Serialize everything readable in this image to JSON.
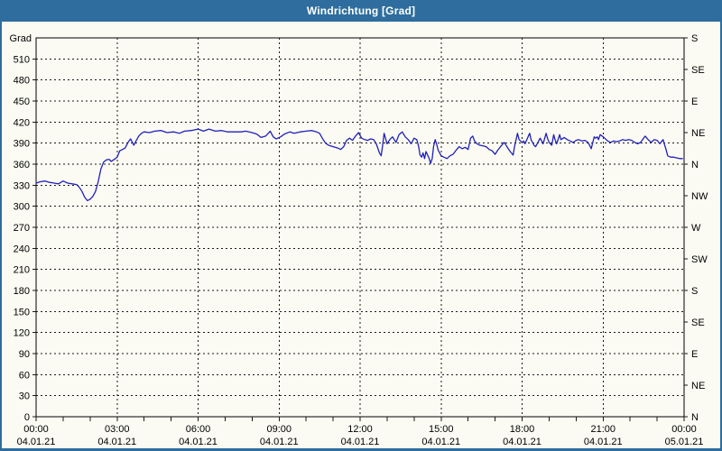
{
  "window": {
    "title": "Windrichtung [Grad]"
  },
  "colors": {
    "titlebar": "#2e6d9d",
    "frame_border": "#2e6d9d",
    "plot_background": "#fbfbf3",
    "grid": "#1a1a1a",
    "axis": "#000000",
    "series_line": "#2020bb",
    "title_text": "#ffffff"
  },
  "chart_data": {
    "type": "line",
    "title": "Windrichtung [Grad]",
    "y_axis_unit_label": "Grad",
    "ylim": [
      0,
      540
    ],
    "xlim_hours": [
      0,
      24
    ],
    "grid": "dashed, every 30 Grad horizontal, every 3 h vertical",
    "legend_position": "none",
    "y_left_ticks": [
      510,
      480,
      450,
      420,
      390,
      360,
      330,
      300,
      270,
      240,
      210,
      180,
      150,
      120,
      90,
      60,
      30,
      0
    ],
    "y_right_compass_ticks": [
      {
        "value": 540,
        "label": "S"
      },
      {
        "value": 495,
        "label": "SE"
      },
      {
        "value": 450,
        "label": "E"
      },
      {
        "value": 405,
        "label": "NE"
      },
      {
        "value": 360,
        "label": "N"
      },
      {
        "value": 315,
        "label": "NW"
      },
      {
        "value": 270,
        "label": "W"
      },
      {
        "value": 225,
        "label": "SW"
      },
      {
        "value": 180,
        "label": "S"
      },
      {
        "value": 135,
        "label": "SE"
      },
      {
        "value": 90,
        "label": "E"
      },
      {
        "value": 45,
        "label": "NE"
      },
      {
        "value": 0,
        "label": "N"
      }
    ],
    "x_ticks": [
      {
        "hours": 0,
        "time": "00:00",
        "date": "04.01.21"
      },
      {
        "hours": 3,
        "time": "03:00",
        "date": "04.01.21"
      },
      {
        "hours": 6,
        "time": "06:00",
        "date": "04.01.21"
      },
      {
        "hours": 9,
        "time": "09:00",
        "date": "04.01.21"
      },
      {
        "hours": 12,
        "time": "12:00",
        "date": "04.01.21"
      },
      {
        "hours": 15,
        "time": "15:00",
        "date": "04.01.21"
      },
      {
        "hours": 18,
        "time": "18:00",
        "date": "04.01.21"
      },
      {
        "hours": 21,
        "time": "21:00",
        "date": "04.01.21"
      },
      {
        "hours": 24,
        "time": "00:00",
        "date": "05.01.21"
      }
    ],
    "minor_x_tick_interval_hours": 1,
    "series": [
      {
        "name": "Windrichtung",
        "unit": "Grad",
        "color": "#2020bb",
        "points": [
          [
            0,
            333
          ],
          [
            0.17,
            335
          ],
          [
            0.33,
            336
          ],
          [
            0.5,
            334
          ],
          [
            0.67,
            333
          ],
          [
            0.83,
            332
          ],
          [
            1,
            336
          ],
          [
            1.17,
            333
          ],
          [
            1.33,
            332
          ],
          [
            1.5,
            331
          ],
          [
            1.6,
            327
          ],
          [
            1.7,
            321
          ],
          [
            1.8,
            313
          ],
          [
            1.9,
            308
          ],
          [
            2,
            310
          ],
          [
            2.1,
            314
          ],
          [
            2.2,
            321
          ],
          [
            2.3,
            335
          ],
          [
            2.4,
            353
          ],
          [
            2.5,
            363
          ],
          [
            2.6,
            366
          ],
          [
            2.7,
            367
          ],
          [
            2.78,
            364
          ],
          [
            2.9,
            367
          ],
          [
            3,
            370
          ],
          [
            3.1,
            379
          ],
          [
            3.2,
            381
          ],
          [
            3.3,
            383
          ],
          [
            3.42,
            392
          ],
          [
            3.5,
            396
          ],
          [
            3.62,
            387
          ],
          [
            3.7,
            393
          ],
          [
            3.8,
            400
          ],
          [
            3.9,
            404
          ],
          [
            4,
            406
          ],
          [
            4.2,
            405
          ],
          [
            4.4,
            407
          ],
          [
            4.63,
            408
          ],
          [
            4.85,
            405
          ],
          [
            5.1,
            406
          ],
          [
            5.3,
            404
          ],
          [
            5.5,
            407
          ],
          [
            5.75,
            408
          ],
          [
            6,
            410
          ],
          [
            6.2,
            407
          ],
          [
            6.4,
            410
          ],
          [
            6.64,
            407
          ],
          [
            6.87,
            408
          ],
          [
            7.1,
            406
          ],
          [
            7.3,
            406
          ],
          [
            7.6,
            406
          ],
          [
            7.76,
            407
          ],
          [
            8,
            405
          ],
          [
            8.17,
            403
          ],
          [
            8.33,
            398
          ],
          [
            8.5,
            400
          ],
          [
            8.67,
            407
          ],
          [
            8.78,
            399
          ],
          [
            8.89,
            396
          ],
          [
            9.06,
            399
          ],
          [
            9.2,
            403
          ],
          [
            9.4,
            406
          ],
          [
            9.56,
            404
          ],
          [
            9.78,
            406
          ],
          [
            10,
            407
          ],
          [
            10.22,
            408
          ],
          [
            10.39,
            406
          ],
          [
            10.5,
            404
          ],
          [
            10.6,
            397
          ],
          [
            10.72,
            390
          ],
          [
            10.83,
            387
          ],
          [
            11,
            385
          ],
          [
            11.17,
            383
          ],
          [
            11.28,
            381
          ],
          [
            11.39,
            385
          ],
          [
            11.5,
            394
          ],
          [
            11.61,
            397
          ],
          [
            11.72,
            394
          ],
          [
            11.83,
            400
          ],
          [
            11.94,
            405
          ],
          [
            12.06,
            397
          ],
          [
            12.17,
            395
          ],
          [
            12.28,
            394
          ],
          [
            12.39,
            396
          ],
          [
            12.5,
            395
          ],
          [
            12.6,
            389
          ],
          [
            12.72,
            376
          ],
          [
            12.78,
            372
          ],
          [
            12.83,
            385
          ],
          [
            12.89,
            404
          ],
          [
            13,
            389
          ],
          [
            13.1,
            395
          ],
          [
            13.2,
            399
          ],
          [
            13.33,
            391
          ],
          [
            13.44,
            402
          ],
          [
            13.56,
            406
          ],
          [
            13.67,
            399
          ],
          [
            13.78,
            395
          ],
          [
            13.89,
            389
          ],
          [
            14,
            397
          ],
          [
            14.1,
            395
          ],
          [
            14.17,
            385
          ],
          [
            14.22,
            373
          ],
          [
            14.28,
            370
          ],
          [
            14.33,
            376
          ],
          [
            14.39,
            368
          ],
          [
            14.44,
            378
          ],
          [
            14.5,
            373
          ],
          [
            14.56,
            368
          ],
          [
            14.61,
            361
          ],
          [
            14.67,
            368
          ],
          [
            14.72,
            385
          ],
          [
            14.78,
            395
          ],
          [
            14.83,
            389
          ],
          [
            14.89,
            380
          ],
          [
            15,
            372
          ],
          [
            15.1,
            370
          ],
          [
            15.22,
            368
          ],
          [
            15.33,
            372
          ],
          [
            15.44,
            374
          ],
          [
            15.56,
            380
          ],
          [
            15.67,
            385
          ],
          [
            15.78,
            382
          ],
          [
            15.89,
            384
          ],
          [
            16,
            381
          ],
          [
            16.09,
            397
          ],
          [
            16.17,
            400
          ],
          [
            16.24,
            393
          ],
          [
            16.33,
            389
          ],
          [
            16.44,
            387
          ],
          [
            16.56,
            386
          ],
          [
            16.67,
            385
          ],
          [
            16.78,
            381
          ],
          [
            16.89,
            379
          ],
          [
            17,
            374
          ],
          [
            17.1,
            380
          ],
          [
            17.2,
            385
          ],
          [
            17.33,
            391
          ],
          [
            17.39,
            388
          ],
          [
            17.44,
            385
          ],
          [
            17.56,
            378
          ],
          [
            17.67,
            373
          ],
          [
            17.72,
            385
          ],
          [
            17.83,
            404
          ],
          [
            17.89,
            395
          ],
          [
            17.94,
            393
          ],
          [
            18,
            391
          ],
          [
            18.06,
            393
          ],
          [
            18.11,
            389
          ],
          [
            18.22,
            399
          ],
          [
            18.28,
            404
          ],
          [
            18.33,
            395
          ],
          [
            18.44,
            387
          ],
          [
            18.5,
            385
          ],
          [
            18.67,
            397
          ],
          [
            18.78,
            389
          ],
          [
            18.89,
            404
          ],
          [
            18.94,
            397
          ],
          [
            19,
            391
          ],
          [
            19.1,
            387
          ],
          [
            19.17,
            402
          ],
          [
            19.22,
            395
          ],
          [
            19.28,
            389
          ],
          [
            19.39,
            402
          ],
          [
            19.44,
            395
          ],
          [
            19.56,
            398
          ],
          [
            19.67,
            395
          ],
          [
            19.78,
            393
          ],
          [
            19.89,
            391
          ],
          [
            20,
            394
          ],
          [
            20.1,
            395
          ],
          [
            20.22,
            393
          ],
          [
            20.33,
            394
          ],
          [
            20.44,
            391
          ],
          [
            20.5,
            387
          ],
          [
            20.56,
            382
          ],
          [
            20.67,
            399
          ],
          [
            20.72,
            397
          ],
          [
            20.78,
            399
          ],
          [
            20.83,
            395
          ],
          [
            20.89,
            402
          ],
          [
            21,
            399
          ],
          [
            21.06,
            397
          ],
          [
            21.17,
            393
          ],
          [
            21.28,
            391
          ],
          [
            21.39,
            393
          ],
          [
            21.5,
            392
          ],
          [
            21.61,
            393
          ],
          [
            21.72,
            395
          ],
          [
            21.83,
            394
          ],
          [
            21.94,
            395
          ],
          [
            22.06,
            394
          ],
          [
            22.17,
            391
          ],
          [
            22.28,
            389
          ],
          [
            22.39,
            391
          ],
          [
            22.5,
            397
          ],
          [
            22.56,
            400
          ],
          [
            22.67,
            395
          ],
          [
            22.78,
            391
          ],
          [
            22.89,
            395
          ],
          [
            23,
            394
          ],
          [
            23.1,
            389
          ],
          [
            23.22,
            395
          ],
          [
            23.28,
            387
          ],
          [
            23.33,
            381
          ],
          [
            23.39,
            372
          ],
          [
            23.5,
            370
          ],
          [
            23.61,
            370
          ],
          [
            23.72,
            369
          ],
          [
            23.83,
            368
          ],
          [
            23.94,
            368
          ]
        ]
      }
    ]
  }
}
